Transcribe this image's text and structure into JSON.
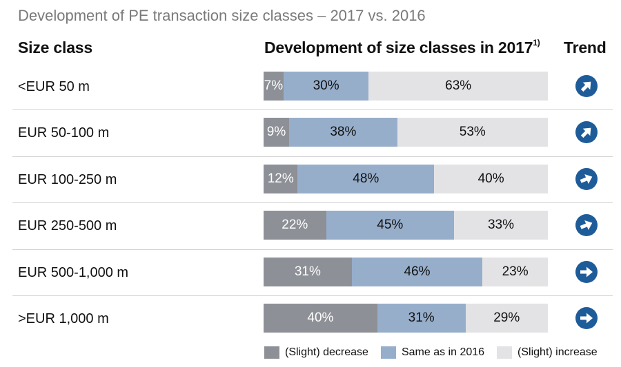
{
  "colors": {
    "decrease": "#8d9096",
    "same": "#97aecb",
    "increase": "#e3e3e6",
    "trend": "#1e5b99"
  },
  "header": {
    "title": "Development of PE transaction size classes – 2017 vs. 2016",
    "col_size": "Size class",
    "col_dev": "Development of size classes in 2017",
    "col_dev_note": "1)",
    "col_trend": "Trend"
  },
  "chart_data": {
    "type": "bar",
    "stacked": true,
    "orientation": "horizontal",
    "unit": "%",
    "categories": [
      "<EUR 50 m",
      "EUR 50-100 m",
      "EUR 100-250 m",
      "EUR 250-500 m",
      "EUR 500-1,000 m",
      ">EUR 1,000 m"
    ],
    "series": [
      {
        "name": "(Slight) decrease",
        "values": [
          7,
          9,
          12,
          22,
          31,
          40
        ],
        "color": "#8d9096"
      },
      {
        "name": "Same as in 2016",
        "values": [
          30,
          38,
          48,
          45,
          46,
          31
        ],
        "color": "#97aecb"
      },
      {
        "name": "(Slight) increase",
        "values": [
          63,
          53,
          40,
          33,
          23,
          29
        ],
        "color": "#e3e3e6"
      }
    ],
    "trend": [
      {
        "icon": "arrow-up-right-icon",
        "angle": -45
      },
      {
        "icon": "arrow-up-right-icon",
        "angle": -45
      },
      {
        "icon": "arrow-slight-up-right-icon",
        "angle": -22
      },
      {
        "icon": "arrow-slight-up-right-icon",
        "angle": -22
      },
      {
        "icon": "arrow-right-icon",
        "angle": 0
      },
      {
        "icon": "arrow-right-icon",
        "angle": 0
      }
    ],
    "legend_position": "bottom"
  }
}
